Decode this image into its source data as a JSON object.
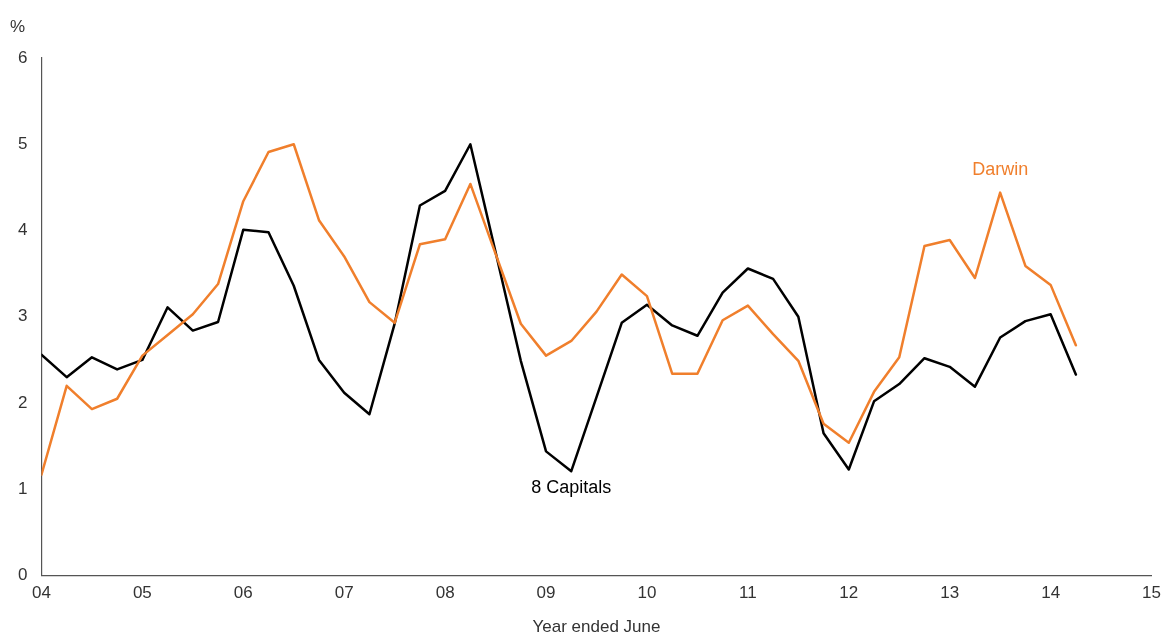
{
  "chart_data": {
    "type": "line",
    "xlabel": "Year ended June",
    "ylabel": "%",
    "x": [
      4,
      4.25,
      4.5,
      4.75,
      5,
      5.25,
      5.5,
      5.75,
      6,
      6.25,
      6.5,
      6.75,
      7,
      7.25,
      7.5,
      7.75,
      8,
      8.25,
      8.5,
      8.75,
      9,
      9.25,
      9.5,
      9.75,
      10,
      10.25,
      10.5,
      10.75,
      11,
      11.25,
      11.5,
      11.75,
      12,
      12.25,
      12.5,
      12.75,
      13,
      13.25,
      13.5,
      13.75,
      14,
      14.25
    ],
    "series": [
      {
        "name": "Darwin",
        "color": "#f07f2c",
        "values": [
          1.17,
          2.2,
          1.93,
          2.05,
          2.55,
          2.79,
          3.03,
          3.38,
          4.34,
          4.91,
          5.0,
          4.12,
          3.7,
          3.17,
          2.93,
          3.84,
          3.9,
          4.54,
          3.73,
          2.92,
          2.55,
          2.72,
          3.06,
          3.49,
          3.24,
          2.34,
          2.34,
          2.96,
          3.13,
          2.8,
          2.49,
          1.76,
          1.54,
          2.13,
          2.53,
          3.82,
          3.89,
          3.45,
          4.44,
          3.59,
          3.37,
          2.67
        ]
      },
      {
        "name": "8 Capitals",
        "color": "#000000",
        "values": [
          2.56,
          2.3,
          2.53,
          2.39,
          2.5,
          3.11,
          2.84,
          2.94,
          4.01,
          3.98,
          3.36,
          2.5,
          2.12,
          1.87,
          2.92,
          4.29,
          4.46,
          5.0,
          3.75,
          2.49,
          1.44,
          1.21,
          2.07,
          2.93,
          3.14,
          2.9,
          2.78,
          3.28,
          3.56,
          3.44,
          3.0,
          1.65,
          1.23,
          2.02,
          2.22,
          2.52,
          2.42,
          2.19,
          2.76,
          2.95,
          3.03,
          2.33
        ]
      }
    ],
    "xlim": [
      4,
      15
    ],
    "xticks": [
      {
        "value": 4,
        "label": "04"
      },
      {
        "value": 5,
        "label": "05"
      },
      {
        "value": 6,
        "label": "06"
      },
      {
        "value": 7,
        "label": "07"
      },
      {
        "value": 8,
        "label": "08"
      },
      {
        "value": 9,
        "label": "09"
      },
      {
        "value": 10,
        "label": "10"
      },
      {
        "value": 11,
        "label": "11"
      },
      {
        "value": 12,
        "label": "12"
      },
      {
        "value": 13,
        "label": "13"
      },
      {
        "value": 14,
        "label": "14"
      },
      {
        "value": 15,
        "label": "15"
      }
    ],
    "ylim": [
      0,
      6
    ],
    "yticks": [
      0,
      1,
      2,
      3,
      4,
      5,
      6
    ],
    "grid": false,
    "legend": false,
    "marker": "none",
    "line_style": "solid"
  }
}
